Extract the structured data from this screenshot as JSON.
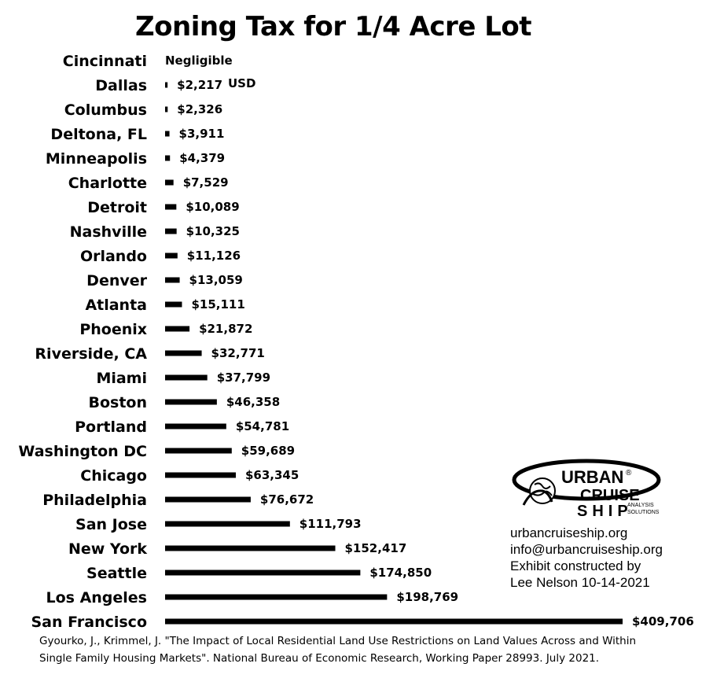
{
  "chart_data": {
    "type": "bar",
    "orientation": "horizontal",
    "title": "Zoning Tax for 1/4 Acre Lot",
    "unit": "USD",
    "categories": [
      "Cincinnati",
      "Dallas",
      "Columbus",
      "Deltona, FL",
      "Minneapolis",
      "Charlotte",
      "Detroit",
      "Nashville",
      "Orlando",
      "Denver",
      "Atlanta",
      "Phoenix",
      "Riverside, CA",
      "Miami",
      "Boston",
      "Portland",
      "Washington DC",
      "Chicago",
      "Philadelphia",
      "San Jose",
      "New York",
      "Seattle",
      "Los Angeles",
      "San Francisco"
    ],
    "values": [
      0,
      2217,
      2326,
      3911,
      4379,
      7529,
      10089,
      10325,
      11126,
      13059,
      15111,
      21872,
      32771,
      37799,
      46358,
      54781,
      59689,
      63345,
      76672,
      111793,
      152417,
      174850,
      198769,
      409706
    ],
    "value_labels": [
      "Negligible",
      "$2,217",
      "$2,326",
      "$3,911",
      "$4,379",
      "$7,529",
      "$10,089",
      "$10,325",
      "$11,126",
      "$13,059",
      "$15,111",
      "$21,872",
      "$32,771",
      "$37,799",
      "$46,358",
      "$54,781",
      "$59,689",
      "$63,345",
      "$76,672",
      "$111,793",
      "$152,417",
      "$174,850",
      "$198,769",
      "$409,706"
    ],
    "bar_color": "#000000",
    "xlim": [
      0,
      409706
    ],
    "grid": false,
    "legend": "none"
  },
  "logo": {
    "line1": "URBAN",
    "line2": "CRUISE",
    "line3": "SHIP",
    "tag1": "ANALYSIS",
    "tag2": "SOLUTIONS",
    "mark": "®"
  },
  "credits": {
    "website": "urbancruiseship.org",
    "email": "info@urbancruiseship.org",
    "line3": "Exhibit constructed by",
    "line4": "Lee Nelson 10-14-2021"
  },
  "citation": {
    "line1": "Gyourko, J., Krimmel, J. \"The Impact of Local Residential Land Use Restrictions on Land Values Across and Within",
    "line2": "Single Family Housing Markets\". National Bureau of Economic Research, Working Paper 28993. July 2021."
  }
}
